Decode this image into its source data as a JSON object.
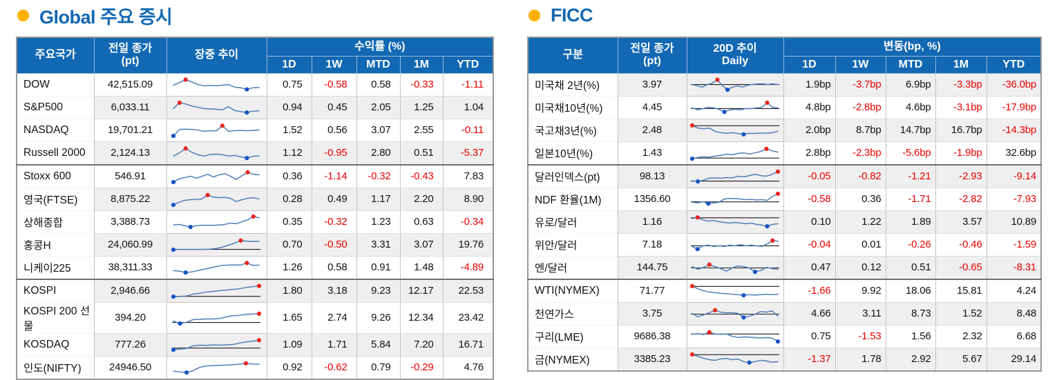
{
  "sections": [
    {
      "id": "global",
      "title": "Global 주요 증시",
      "bullet_color": "#ffb000",
      "stripe_start": 1,
      "header": {
        "col_name": "주요국가",
        "col_close_line1": "전일 종가",
        "col_close_line2": "(pt)",
        "col_trend_line1": "장중 추이",
        "col_trend_line2": "",
        "group_label": "수익률 (%)",
        "subcols": [
          "1D",
          "1W",
          "MTD",
          "1M",
          "YTD"
        ]
      },
      "rows": [
        {
          "name": "DOW",
          "close": "42,515.09",
          "changes": [
            "0.75",
            "-0.58",
            "0.58",
            "-0.33",
            "-1.11"
          ],
          "group_end": false,
          "spark": {
            "values": [
              0.5,
              0.7,
              0.92,
              0.75,
              0.55,
              0.45,
              0.48,
              0.45,
              0.5,
              0.55,
              0.35,
              0.3,
              0.18,
              0.3,
              0.32
            ],
            "baseline": null
          }
        },
        {
          "name": "S&P500",
          "close": "6,033.11",
          "changes": [
            "0.94",
            "0.45",
            "2.05",
            "1.25",
            "1.04"
          ],
          "group_end": false,
          "spark": {
            "values": [
              0.45,
              0.9,
              0.8,
              0.65,
              0.55,
              0.45,
              0.42,
              0.4,
              0.35,
              0.6,
              0.3,
              0.22,
              0.15,
              0.25,
              0.28
            ],
            "baseline": null
          }
        },
        {
          "name": "NASDAQ",
          "close": "19,701.21",
          "changes": [
            "1.52",
            "0.56",
            "3.07",
            "2.55",
            "-0.11"
          ],
          "group_end": false,
          "spark": {
            "values": [
              0.1,
              0.6,
              0.62,
              0.6,
              0.55,
              0.45,
              0.5,
              0.48,
              0.88,
              0.45,
              0.5,
              0.52,
              0.5,
              0.52,
              0.55
            ],
            "baseline": null
          }
        },
        {
          "name": "Russell 2000",
          "close": "2,124.13",
          "changes": [
            "1.12",
            "-0.95",
            "2.80",
            "0.51",
            "-5.37"
          ],
          "group_end": true,
          "spark": {
            "values": [
              0.3,
              0.55,
              0.88,
              0.6,
              0.4,
              0.3,
              0.42,
              0.45,
              0.4,
              0.3,
              0.35,
              0.25,
              0.15,
              0.28,
              0.3
            ],
            "baseline": null
          }
        },
        {
          "name": "Stoxx 600",
          "close": "546.91",
          "changes": [
            "0.36",
            "-1.14",
            "-0.32",
            "-0.43",
            "7.83"
          ],
          "group_end": false,
          "spark": {
            "values": [
              0.1,
              0.35,
              0.45,
              0.55,
              0.4,
              0.55,
              0.7,
              0.5,
              0.65,
              0.75,
              0.55,
              0.3,
              0.6,
              0.85,
              0.7,
              0.65
            ],
            "baseline": null
          }
        },
        {
          "name": "영국(FTSE)",
          "close": "8,875.22",
          "changes": [
            "0.28",
            "0.49",
            "1.17",
            "2.20",
            "8.90"
          ],
          "group_end": false,
          "spark": {
            "values": [
              0.1,
              0.3,
              0.45,
              0.5,
              0.52,
              0.55,
              0.85,
              0.7,
              0.65,
              0.68,
              0.6,
              0.35,
              0.5,
              0.6,
              0.65,
              0.55
            ],
            "baseline": null
          }
        },
        {
          "name": "상해종합",
          "close": "3,388.73",
          "changes": [
            "0.35",
            "-0.32",
            "1.23",
            "0.63",
            "-0.34"
          ],
          "group_end": false,
          "spark": {
            "values": [
              0.3,
              0.35,
              0.25,
              0.15,
              0.25,
              0.28,
              0.28,
              0.28,
              0.3,
              0.35,
              0.45,
              0.4,
              0.55,
              0.7,
              0.95,
              0.85
            ],
            "baseline": null
          }
        },
        {
          "name": "홍콩H",
          "close": "24,060.99",
          "changes": [
            "0.70",
            "-0.50",
            "3.31",
            "3.07",
            "19.76"
          ],
          "group_end": false,
          "spark": {
            "values": [
              0.15,
              0.18,
              0.18,
              0.18,
              0.18,
              0.18,
              0.2,
              0.25,
              0.35,
              0.5,
              0.65,
              0.85,
              0.8,
              0.78,
              0.8
            ],
            "baseline": 0.18
          }
        },
        {
          "name": "니케이225",
          "close": "38,311.33",
          "changes": [
            "1.26",
            "0.58",
            "0.91",
            "1.48",
            "-4.89"
          ],
          "group_end": true,
          "spark": {
            "values": [
              0.3,
              0.25,
              0.15,
              0.2,
              0.3,
              0.4,
              0.5,
              0.6,
              0.7,
              0.72,
              0.73,
              0.72,
              0.88,
              0.7,
              0.72
            ],
            "baseline": null
          }
        },
        {
          "name": "KOSPI",
          "close": "2,946.66",
          "changes": [
            "1.80",
            "3.18",
            "9.23",
            "12.17",
            "22.53"
          ],
          "group_end": false,
          "spark": {
            "values": [
              0.1,
              0.12,
              0.15,
              0.3,
              0.35,
              0.45,
              0.5,
              0.55,
              0.6,
              0.65,
              0.7,
              0.8,
              0.85,
              0.92
            ],
            "baseline": 0.12
          }
        },
        {
          "name": "KOSPI 200 선물",
          "close": "394.20",
          "changes": [
            "1.65",
            "2.74",
            "9.26",
            "12.34",
            "23.42"
          ],
          "group_end": false,
          "spark": {
            "values": [
              0.3,
              0.1,
              0.2,
              0.4,
              0.42,
              0.45,
              0.45,
              0.48,
              0.6,
              0.7,
              0.72,
              0.8,
              0.82,
              0.85
            ],
            "baseline": 0.18
          }
        },
        {
          "name": "KOSDAQ",
          "close": "777.26",
          "changes": [
            "1.09",
            "1.71",
            "5.84",
            "7.20",
            "16.71"
          ],
          "group_end": false,
          "spark": {
            "values": [
              0.15,
              0.2,
              0.25,
              0.45,
              0.5,
              0.48,
              0.52,
              0.5,
              0.52,
              0.55,
              0.65,
              0.75,
              0.8,
              0.88
            ],
            "baseline": 0.28
          }
        },
        {
          "name": "인도(NIFTY)",
          "close": "24946.50",
          "changes": [
            "0.92",
            "-0.62",
            "0.79",
            "-0.29",
            "4.76"
          ],
          "group_end": false,
          "spark": {
            "values": [
              0.25,
              0.2,
              0.15,
              0.3,
              0.55,
              0.65,
              0.68,
              0.7,
              0.72,
              0.75,
              0.78,
              0.85,
              0.8,
              0.78
            ],
            "baseline": null
          }
        }
      ]
    },
    {
      "id": "ficc",
      "title": "FICC",
      "bullet_color": "#ffb000",
      "stripe_start": 0,
      "header": {
        "col_name": "구분",
        "col_close_line1": "전일 종가",
        "col_close_line2": "(pt)",
        "col_trend_line1": "20D 추이",
        "col_trend_line2": "Daily",
        "group_label": "변동(bp, %)",
        "subcols": [
          "1D",
          "1W",
          "MTD",
          "1M",
          "YTD"
        ]
      },
      "rows": [
        {
          "name": "미국채 2년(%)",
          "close": "3.97",
          "changes": [
            "1.9bp",
            "-3.7bp",
            "6.9bp",
            "-3.3bp",
            "-36.0bp"
          ],
          "group_end": false,
          "spark": {
            "values": [
              0.55,
              0.45,
              0.35,
              0.55,
              0.65,
              0.92,
              0.45,
              0.15,
              0.35,
              0.45,
              0.35,
              0.5,
              0.55,
              0.6,
              0.6,
              0.55,
              0.6,
              0.55
            ],
            "baseline": 0.55
          }
        },
        {
          "name": "미국채10년(%)",
          "close": "4.45",
          "changes": [
            "4.8bp",
            "-2.8bp",
            "4.6bp",
            "-3.1bp",
            "-17.9bp"
          ],
          "group_end": false,
          "spark": {
            "values": [
              0.5,
              0.35,
              0.45,
              0.55,
              0.5,
              0.4,
              0.2,
              0.35,
              0.4,
              0.35,
              0.45,
              0.45,
              0.5,
              0.55,
              0.9,
              0.55,
              0.5
            ],
            "baseline": 0.45
          }
        },
        {
          "name": "국고채3년(%)",
          "close": "2.48",
          "changes": [
            "2.0bp",
            "8.7bp",
            "14.7bp",
            "16.7bp",
            "-14.3bp"
          ],
          "group_end": false,
          "spark": {
            "values": [
              0.9,
              0.7,
              0.65,
              0.7,
              0.45,
              0.35,
              0.3,
              0.35,
              0.28,
              0.22,
              0.3,
              0.28,
              0.32,
              0.3,
              0.35,
              0.45
            ],
            "baseline": 0.88
          }
        },
        {
          "name": "일본10년(%)",
          "close": "1.43",
          "changes": [
            "2.8bp",
            "-2.3bp",
            "-5.6bp",
            "-1.9bp",
            "32.6bp"
          ],
          "group_end": true,
          "spark": {
            "values": [
              0.1,
              0.2,
              0.25,
              0.22,
              0.3,
              0.35,
              0.45,
              0.4,
              0.5,
              0.55,
              0.45,
              0.55,
              0.65,
              0.85,
              0.7,
              0.6
            ],
            "baseline": 0.15
          }
        },
        {
          "name": "달러인덱스(pt)",
          "close": "98.13",
          "changes": [
            "-0.05",
            "-0.82",
            "-1.21",
            "-2.93",
            "-9.14"
          ],
          "group_end": false,
          "spark": {
            "values": [
              0.2,
              0.15,
              0.25,
              0.4,
              0.42,
              0.4,
              0.45,
              0.42,
              0.55,
              0.5,
              0.6,
              0.7,
              0.6,
              0.55,
              0.7,
              0.9
            ],
            "baseline": 0.18
          }
        },
        {
          "name": "NDF 환율(1M)",
          "close": "1356.60",
          "changes": [
            "-0.58",
            "0.36",
            "-1.71",
            "-2.82",
            "-7.93"
          ],
          "group_end": false,
          "spark": {
            "values": [
              0.3,
              0.25,
              0.35,
              0.2,
              0.25,
              0.3,
              0.55,
              0.6,
              0.58,
              0.55,
              0.5,
              0.52,
              0.48,
              0.5,
              0.45,
              0.75,
              0.95
            ],
            "baseline": 0.33
          }
        },
        {
          "name": "유로/달러",
          "close": "1.16",
          "changes": [
            "0.10",
            "1.22",
            "1.89",
            "3.57",
            "10.89"
          ],
          "group_end": false,
          "spark": {
            "values": [
              0.8,
              0.88,
              0.7,
              0.6,
              0.65,
              0.55,
              0.5,
              0.45,
              0.5,
              0.45,
              0.4,
              0.45,
              0.35,
              0.3,
              0.2,
              0.35,
              0.4
            ],
            "baseline": 0.85
          }
        },
        {
          "name": "위안/달러",
          "close": "7.18",
          "changes": [
            "-0.04",
            "0.01",
            "-0.26",
            "-0.46",
            "-1.59"
          ],
          "group_end": false,
          "spark": {
            "values": [
              0.4,
              0.2,
              0.45,
              0.5,
              0.4,
              0.45,
              0.4,
              0.5,
              0.45,
              0.55,
              0.45,
              0.5,
              0.45,
              0.4,
              0.6,
              0.85,
              0.8
            ],
            "baseline": 0.45
          }
        },
        {
          "name": "엔/달러",
          "close": "144.75",
          "changes": [
            "0.47",
            "0.12",
            "0.51",
            "-0.65",
            "-8.31"
          ],
          "group_end": true,
          "spark": {
            "values": [
              0.6,
              0.4,
              0.55,
              0.75,
              0.6,
              0.45,
              0.25,
              0.5,
              0.65,
              0.6,
              0.5,
              0.2,
              0.3,
              0.55,
              0.45,
              0.4
            ],
            "baseline": 0.5
          }
        },
        {
          "name": "WTI(NYMEX)",
          "close": "71.77",
          "changes": [
            "-1.66",
            "9.92",
            "18.06",
            "15.81",
            "4.24"
          ],
          "group_end": false,
          "spark": {
            "values": [
              0.9,
              0.7,
              0.55,
              0.45,
              0.4,
              0.35,
              0.32,
              0.28,
              0.25,
              0.2,
              0.25,
              0.22,
              0.25,
              0.28,
              0.25,
              0.28
            ],
            "baseline": 0.88
          }
        },
        {
          "name": "천연가스",
          "close": "3.75",
          "changes": [
            "4.66",
            "3.11",
            "8.73",
            "1.52",
            "8.48"
          ],
          "group_end": false,
          "spark": {
            "values": [
              0.55,
              0.3,
              0.45,
              0.6,
              0.8,
              0.65,
              0.6,
              0.62,
              0.55,
              0.25,
              0.35,
              0.5,
              0.7,
              0.65,
              0.75,
              0.35
            ],
            "baseline": 0.5
          }
        },
        {
          "name": "구리(LME)",
          "close": "9686.38",
          "changes": [
            "0.75",
            "-1.53",
            "1.56",
            "2.32",
            "6.68"
          ],
          "group_end": false,
          "spark": {
            "values": [
              0.7,
              0.75,
              0.68,
              0.85,
              0.72,
              0.7,
              0.72,
              0.55,
              0.45,
              0.5,
              0.48,
              0.45,
              0.42,
              0.45,
              0.4,
              0.15
            ],
            "baseline": 0.72
          }
        },
        {
          "name": "금(NYMEX)",
          "close": "3385.23",
          "changes": [
            "-1.37",
            "1.78",
            "2.92",
            "5.67",
            "29.14"
          ],
          "group_end": false,
          "spark": {
            "values": [
              0.9,
              0.75,
              0.6,
              0.5,
              0.45,
              0.55,
              0.6,
              0.5,
              0.55,
              0.35,
              0.28,
              0.35,
              0.45,
              0.4,
              0.3,
              0.35
            ],
            "baseline": 0.88
          }
        }
      ]
    }
  ],
  "colors": {
    "header_bg": "#1268b3",
    "title_blue": "#1268b3",
    "bullet_orange": "#ffb000",
    "negative_red": "#e80000",
    "stripe_gray": "#efefef",
    "spark_line": "#4d7eb8",
    "spark_max_dot": "#e8231e",
    "spark_min_dot": "#1453c4"
  }
}
